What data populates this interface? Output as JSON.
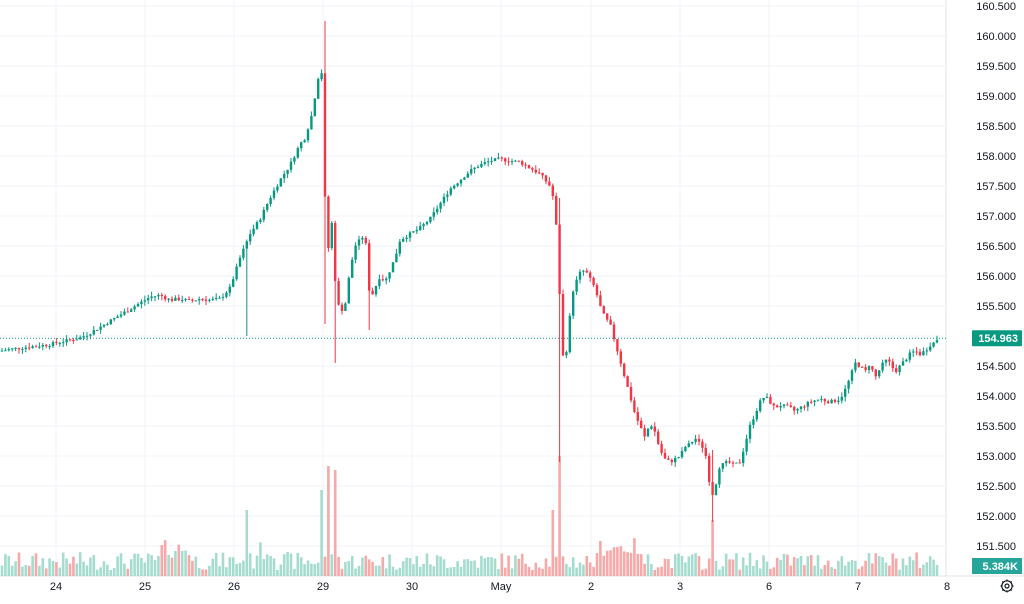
{
  "chart_data": {
    "type": "candlestick",
    "price_axis": {
      "ticks": [
        "160.500",
        "160.000",
        "159.500",
        "159.000",
        "158.500",
        "158.000",
        "157.500",
        "157.000",
        "156.500",
        "156.000",
        "155.500",
        "155.000",
        "154.500",
        "154.000",
        "153.500",
        "153.000",
        "152.500",
        "152.000",
        "151.500"
      ],
      "range": [
        151.2,
        160.6
      ]
    },
    "time_axis": {
      "labels": [
        "24",
        "25",
        "26",
        "29",
        "30",
        "May",
        "2",
        "3",
        "6",
        "7",
        "8"
      ]
    },
    "current_price": {
      "label": "154.963",
      "value": 154.963,
      "color": "#089981"
    },
    "volume_badge": {
      "label": "5.384K",
      "color": "#26a69a"
    },
    "colors": {
      "up": "#089981",
      "down": "#f23645",
      "vol_up": "#a6dccf",
      "vol_down": "#f5a9a9",
      "grid": "#f0f3fa",
      "axis_text": "#131722"
    },
    "series": [
      {
        "name": "price",
        "anchors": [
          [
            0,
            154.75
          ],
          [
            10,
            154.78
          ],
          [
            20,
            154.8
          ],
          [
            30,
            154.82
          ],
          [
            40,
            154.84
          ],
          [
            50,
            154.86
          ],
          [
            60,
            154.9
          ],
          [
            70,
            154.93
          ],
          [
            80,
            154.97
          ],
          [
            90,
            155.05
          ],
          [
            100,
            155.15
          ],
          [
            110,
            155.25
          ],
          [
            120,
            155.35
          ],
          [
            130,
            155.45
          ],
          [
            140,
            155.55
          ],
          [
            150,
            155.65
          ],
          [
            160,
            155.68
          ],
          [
            170,
            155.6
          ],
          [
            180,
            155.62
          ],
          [
            190,
            155.58
          ],
          [
            200,
            155.62
          ],
          [
            210,
            155.6
          ],
          [
            220,
            155.62
          ],
          [
            230,
            155.8
          ],
          [
            240,
            156.3
          ],
          [
            250,
            156.7
          ],
          [
            260,
            156.95
          ],
          [
            270,
            157.3
          ],
          [
            280,
            157.6
          ],
          [
            290,
            157.85
          ],
          [
            300,
            158.2
          ],
          [
            305,
            158.3
          ],
          [
            312,
            158.7
          ],
          [
            318,
            159.3
          ],
          [
            322,
            159.4
          ],
          [
            324,
            157.8
          ],
          [
            327,
            156.3
          ],
          [
            332,
            156.9
          ],
          [
            336,
            155.7
          ],
          [
            340,
            155.4
          ],
          [
            345,
            155.5
          ],
          [
            350,
            156.1
          ],
          [
            355,
            156.5
          ],
          [
            360,
            156.6
          ],
          [
            365,
            156.7
          ],
          [
            370,
            155.6
          ],
          [
            375,
            155.8
          ],
          [
            380,
            156.0
          ],
          [
            385,
            155.9
          ],
          [
            390,
            156.1
          ],
          [
            395,
            156.3
          ],
          [
            400,
            156.6
          ],
          [
            410,
            156.7
          ],
          [
            420,
            156.8
          ],
          [
            430,
            156.95
          ],
          [
            440,
            157.2
          ],
          [
            450,
            157.45
          ],
          [
            460,
            157.6
          ],
          [
            470,
            157.75
          ],
          [
            480,
            157.85
          ],
          [
            490,
            157.92
          ],
          [
            500,
            157.95
          ],
          [
            510,
            157.92
          ],
          [
            520,
            157.9
          ],
          [
            530,
            157.8
          ],
          [
            540,
            157.7
          ],
          [
            550,
            157.5
          ],
          [
            555,
            157.2
          ],
          [
            558,
            156.3
          ],
          [
            561,
            155.2
          ],
          [
            564,
            154.4
          ],
          [
            568,
            155.0
          ],
          [
            572,
            155.7
          ],
          [
            576,
            155.9
          ],
          [
            580,
            156.05
          ],
          [
            585,
            156.1
          ],
          [
            590,
            155.95
          ],
          [
            595,
            155.8
          ],
          [
            600,
            155.5
          ],
          [
            605,
            155.3
          ],
          [
            610,
            155.2
          ],
          [
            615,
            154.9
          ],
          [
            620,
            154.6
          ],
          [
            625,
            154.3
          ],
          [
            630,
            154.0
          ],
          [
            635,
            153.7
          ],
          [
            640,
            153.5
          ],
          [
            645,
            153.3
          ],
          [
            650,
            153.55
          ],
          [
            655,
            153.4
          ],
          [
            660,
            153.1
          ],
          [
            665,
            152.95
          ],
          [
            670,
            152.9
          ],
          [
            675,
            152.95
          ],
          [
            680,
            153.0
          ],
          [
            685,
            153.15
          ],
          [
            690,
            153.2
          ],
          [
            695,
            153.3
          ],
          [
            700,
            153.2
          ],
          [
            705,
            153.1
          ],
          [
            710,
            152.5
          ],
          [
            714,
            152.3
          ],
          [
            718,
            152.8
          ],
          [
            722,
            152.85
          ],
          [
            728,
            152.9
          ],
          [
            734,
            152.85
          ],
          [
            740,
            152.9
          ],
          [
            745,
            153.2
          ],
          [
            750,
            153.5
          ],
          [
            755,
            153.7
          ],
          [
            760,
            153.9
          ],
          [
            765,
            154.0
          ],
          [
            770,
            153.9
          ],
          [
            775,
            153.8
          ],
          [
            780,
            153.85
          ],
          [
            790,
            153.8
          ],
          [
            795,
            153.75
          ],
          [
            800,
            153.8
          ],
          [
            810,
            153.9
          ],
          [
            820,
            153.95
          ],
          [
            830,
            153.9
          ],
          [
            840,
            153.95
          ],
          [
            845,
            154.1
          ],
          [
            850,
            154.3
          ],
          [
            855,
            154.55
          ],
          [
            860,
            154.5
          ],
          [
            865,
            154.4
          ],
          [
            870,
            154.55
          ],
          [
            875,
            154.3
          ],
          [
            880,
            154.45
          ],
          [
            885,
            154.6
          ],
          [
            890,
            154.55
          ],
          [
            895,
            154.4
          ],
          [
            900,
            154.5
          ],
          [
            905,
            154.6
          ],
          [
            910,
            154.7
          ],
          [
            915,
            154.75
          ],
          [
            920,
            154.7
          ],
          [
            925,
            154.75
          ],
          [
            930,
            154.85
          ],
          [
            935,
            154.9
          ],
          [
            938,
            154.963
          ]
        ]
      }
    ]
  }
}
